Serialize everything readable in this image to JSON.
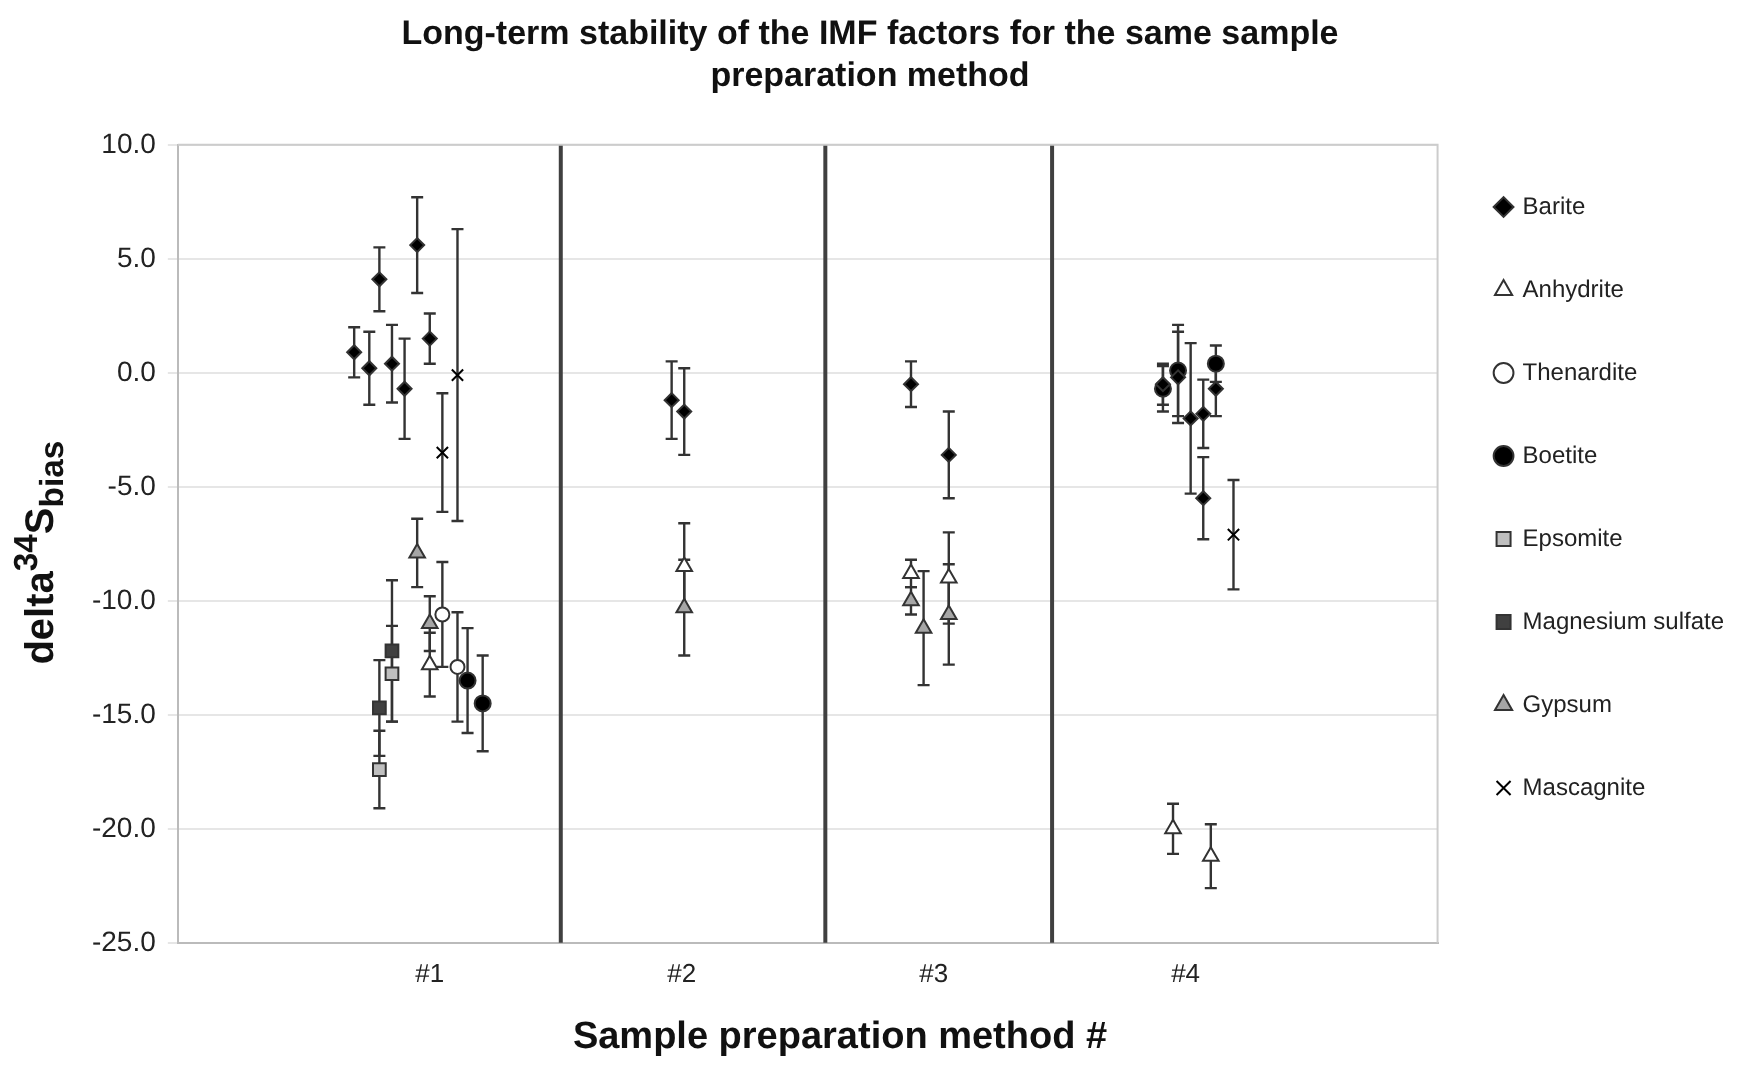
{
  "chart_data": {
    "type": "scatter",
    "title": "Long-term stability of the IMF factors for the same sample preparation method",
    "xlabel": "Sample preparation method #",
    "ylabel": "delta$^{34}$S$_{bias}$",
    "xlim": [
      0,
      5
    ],
    "xticks": [
      {
        "value": 1,
        "label": "#1"
      },
      {
        "value": 2,
        "label": "#2"
      },
      {
        "value": 3,
        "label": "#3"
      },
      {
        "value": 4,
        "label": "#4"
      }
    ],
    "ylim": [
      -25,
      10
    ],
    "yticks": [
      {
        "value": -25,
        "label": "-25.0"
      },
      {
        "value": -20,
        "label": "-20.0"
      },
      {
        "value": -15,
        "label": "-15.0"
      },
      {
        "value": -10,
        "label": "-10.0"
      },
      {
        "value": -5,
        "label": "-5.0"
      },
      {
        "value": 0,
        "label": "0.0"
      },
      {
        "value": 5,
        "label": "5.0"
      },
      {
        "value": 10,
        "label": "10.0"
      }
    ],
    "grid": "y",
    "legend": "right",
    "ref_lines": [
      {
        "axis": "x",
        "value": 1.52,
        "color": "#404040"
      },
      {
        "axis": "x",
        "value": 2.57,
        "color": "#404040"
      },
      {
        "axis": "x",
        "value": 3.47,
        "color": "#404040"
      }
    ],
    "series": [
      {
        "name": "Barite",
        "marker": "diamond",
        "color": "#000000",
        "x": [
          0.7,
          0.76,
          0.8,
          0.85,
          0.9,
          0.95,
          1.0,
          1.96,
          2.01,
          2.91,
          3.06,
          3.91,
          3.97,
          4.02,
          4.07,
          4.07,
          4.12
        ],
        "values": [
          0.9,
          0.2,
          4.1,
          0.4,
          -0.7,
          5.6,
          1.5,
          -1.2,
          -1.7,
          -0.5,
          -3.6,
          -0.5,
          -0.2,
          -2.0,
          -1.8,
          -5.5,
          -0.7
        ],
        "errors": [
          1.1,
          1.6,
          1.4,
          1.7,
          2.2,
          2.1,
          1.1,
          1.7,
          1.9,
          1.0,
          1.9,
          0.9,
          2.0,
          3.3,
          1.5,
          1.8,
          1.2
        ]
      },
      {
        "name": "Anhydrite",
        "marker": "triangle",
        "color": "#ffffff",
        "x": [
          1.0,
          2.01,
          2.91,
          3.06,
          3.95,
          4.1
        ],
        "values": [
          -12.8,
          -8.5,
          -8.8,
          -9.0,
          -20.0,
          -21.2
        ],
        "errors": [
          1.4,
          1.9,
          0.6,
          2.0,
          1.1,
          1.4
        ]
      },
      {
        "name": "Thenardite",
        "marker": "circle",
        "color": "#ffffff",
        "x": [
          1.05,
          1.11
        ],
        "values": [
          -10.6,
          -12.9
        ],
        "errors": [
          2.3,
          2.4
        ]
      },
      {
        "name": "Boetite",
        "marker": "circle",
        "color": "#000000",
        "x": [
          1.15,
          1.21,
          3.91,
          3.97,
          4.12
        ],
        "values": [
          -13.5,
          -14.5,
          -0.7,
          0.1,
          0.4
        ],
        "errors": [
          2.3,
          2.1,
          1.0,
          2.0,
          0.8
        ]
      },
      {
        "name": "Epsomite",
        "marker": "square",
        "color": "#bfbfbf",
        "x": [
          0.8,
          0.85
        ],
        "values": [
          -17.4,
          -13.2
        ],
        "errors": [
          1.7,
          2.1
        ]
      },
      {
        "name": "Magnesium sulfate",
        "marker": "square",
        "color": "#404040",
        "x": [
          0.8,
          0.85
        ],
        "values": [
          -14.7,
          -12.2
        ],
        "errors": [
          2.1,
          3.1
        ]
      },
      {
        "name": "Gypsum",
        "marker": "triangle",
        "color": "#a6a6a6",
        "x": [
          0.95,
          1.0,
          2.01,
          2.91,
          2.96,
          3.06
        ],
        "values": [
          -7.9,
          -11.0,
          -10.3,
          -10.0,
          -11.2,
          -10.6
        ],
        "errors": [
          1.5,
          1.2,
          2.1,
          0.6,
          2.5,
          2.2
        ]
      },
      {
        "name": "Mascagnite",
        "marker": "cross",
        "color": "#000000",
        "x": [
          1.05,
          1.11,
          4.19
        ],
        "values": [
          -3.5,
          -0.1,
          -7.1
        ],
        "errors": [
          2.6,
          6.4,
          2.4
        ]
      }
    ]
  }
}
